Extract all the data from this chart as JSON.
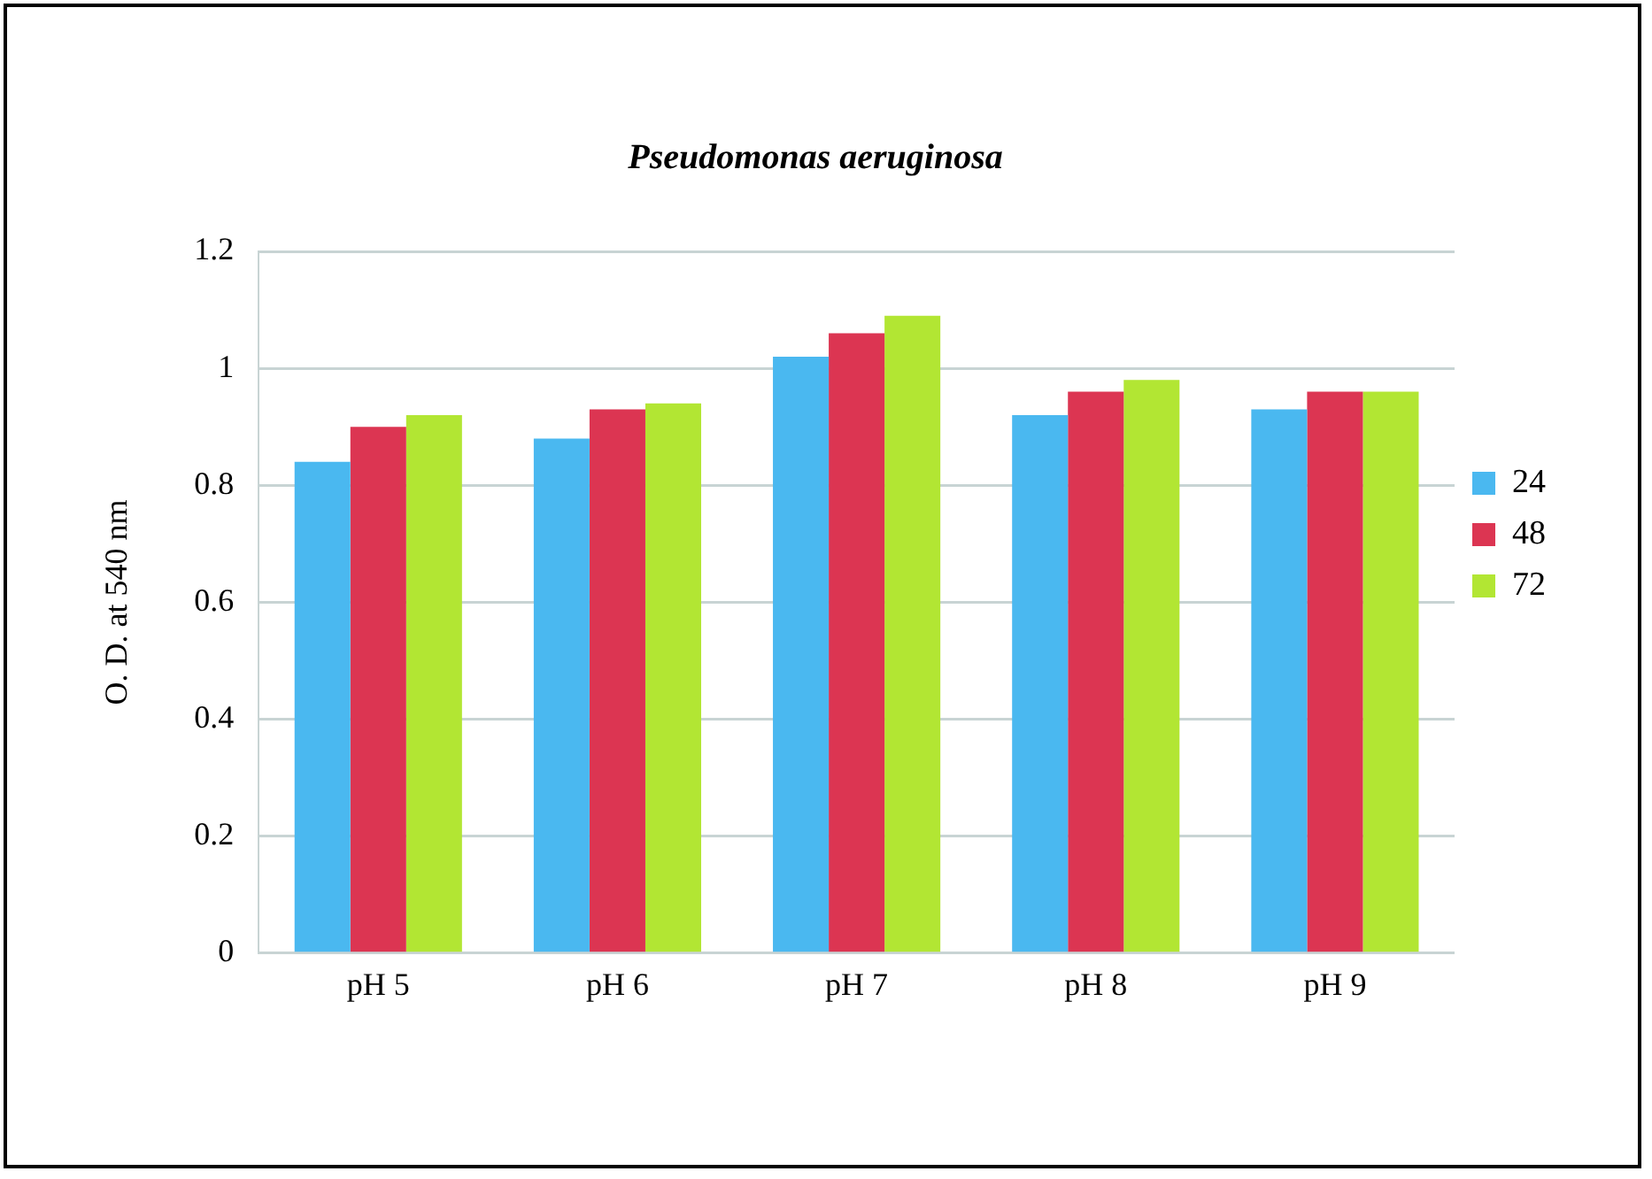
{
  "chart_data": {
    "type": "bar",
    "title": "Pseudomonas aeruginosa",
    "ylabel": "O. D. at 540 nm",
    "categories": [
      "pH 5",
      "pH 6",
      "pH 7",
      "pH 8",
      "pH 9"
    ],
    "series": [
      {
        "name": "24",
        "color": "#4ab8f0",
        "values": [
          0.84,
          0.88,
          1.02,
          0.92,
          0.93
        ]
      },
      {
        "name": "48",
        "color": "#dc3552",
        "values": [
          0.9,
          0.93,
          1.06,
          0.96,
          0.96
        ]
      },
      {
        "name": "72",
        "color": "#b2e633",
        "values": [
          0.92,
          0.94,
          1.09,
          0.98,
          0.96
        ]
      }
    ],
    "ylim": [
      0,
      1.2
    ],
    "yticks": [
      0,
      0.2,
      0.4,
      0.6,
      0.8,
      1,
      1.2
    ],
    "grid": "y",
    "legend": "right"
  }
}
